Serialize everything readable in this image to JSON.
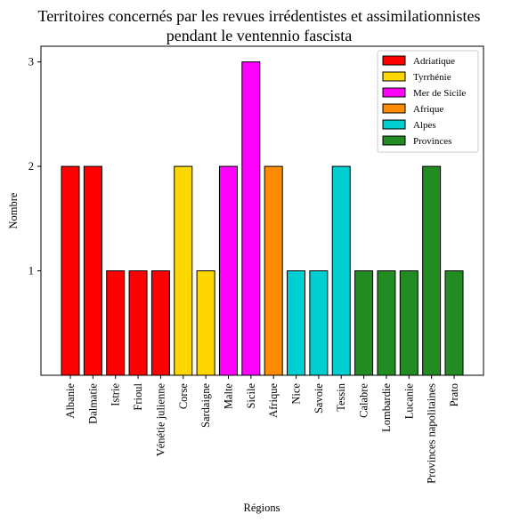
{
  "chart_data": {
    "type": "bar",
    "title_line1": "Territoires concernés par les revues irrédentistes et assimilationnistes",
    "title_line2": "pendant le ventennio fascista",
    "xlabel": "Régions",
    "ylabel": "Nombre",
    "ylim": [
      0,
      3.15
    ],
    "yticks": [
      1,
      2,
      3
    ],
    "grid": false,
    "legend_position": "top-right",
    "categories": [
      "Albanie",
      "Dalmatie",
      "Istrie",
      "Frioul",
      "Vénétie julienne",
      "Corse",
      "Sardaigne",
      "Malte",
      "Sicile",
      "Afrique",
      "Nice",
      "Savoie",
      "Tessin",
      "Calabre",
      "Lombardie",
      "Lucanie",
      "Provinces napolitaines",
      "Prato"
    ],
    "values": [
      2,
      2,
      1,
      1,
      1,
      2,
      1,
      2,
      3,
      2,
      1,
      1,
      2,
      1,
      1,
      1,
      2,
      1
    ],
    "groups": [
      "Adriatique",
      "Adriatique",
      "Adriatique",
      "Adriatique",
      "Adriatique",
      "Tyrrhénie",
      "Tyrrhénie",
      "Mer de Sicile",
      "Mer de Sicile",
      "Afrique",
      "Alpes",
      "Alpes",
      "Alpes",
      "Provinces",
      "Provinces",
      "Provinces",
      "Provinces",
      "Provinces"
    ],
    "legend": [
      {
        "name": "Adriatique",
        "color": "#ff0000"
      },
      {
        "name": "Tyrrhénie",
        "color": "#ffd700"
      },
      {
        "name": "Mer de Sicile",
        "color": "#ff00ff"
      },
      {
        "name": "Afrique",
        "color": "#ff8c00"
      },
      {
        "name": "Alpes",
        "color": "#00ced1"
      },
      {
        "name": "Provinces",
        "color": "#228b22"
      }
    ]
  }
}
